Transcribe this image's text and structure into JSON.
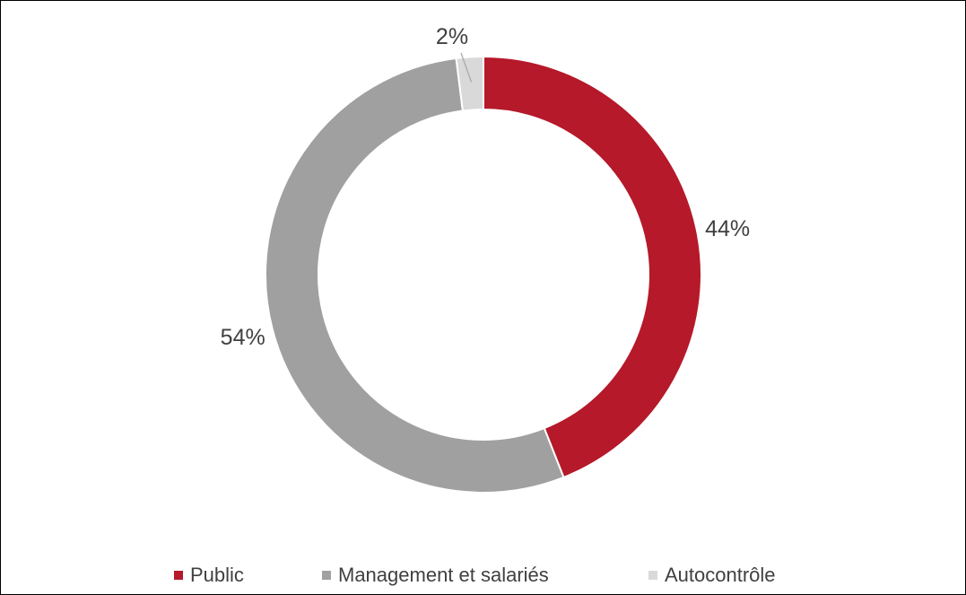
{
  "chart_data": {
    "type": "pie",
    "donut": true,
    "categories": [
      "Public",
      "Management et salariés",
      "Autocontrôle"
    ],
    "values": [
      44,
      54,
      2
    ],
    "unit": "%",
    "data_labels": [
      "44%",
      "54%",
      "2%"
    ],
    "colors": [
      "#b5192a",
      "#a0a0a0",
      "#d9d9d9"
    ],
    "start_angle_deg": 0,
    "direction": "clockwise",
    "legend": {
      "position": "bottom"
    },
    "title": ""
  },
  "legend": {
    "items": [
      {
        "label": "Public",
        "color": "#b5192a"
      },
      {
        "label": "Management et salariés",
        "color": "#a0a0a0"
      },
      {
        "label": "Autocontrôle",
        "color": "#d9d9d9"
      }
    ]
  }
}
